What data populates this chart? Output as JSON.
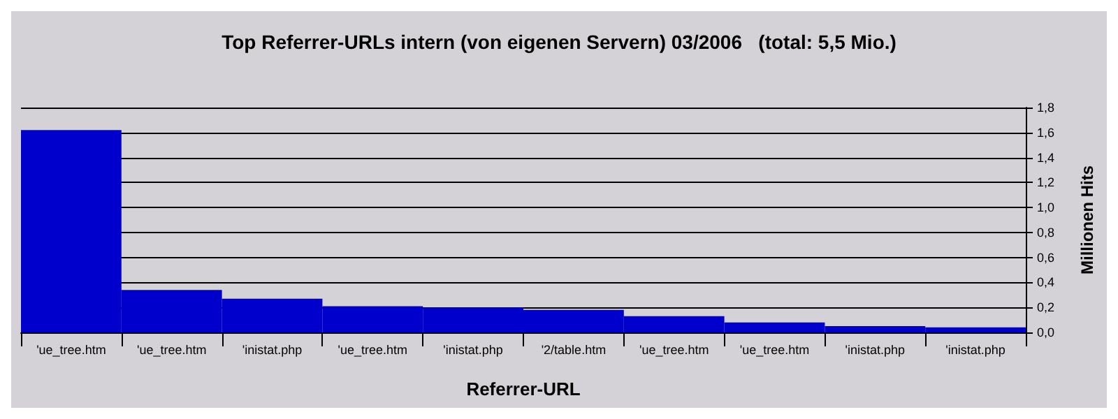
{
  "chart_data": {
    "type": "bar",
    "title": "Top Referrer-URLs intern (von eigenen Servern) 03/2006   (total: 5,5 Mio.)",
    "xlabel": "Referrer-URL",
    "ylabel": "Millionen Hits",
    "categories": [
      "'ue_tree.htm",
      "'ue_tree.htm",
      "'inistat.php",
      "'ue_tree.htm",
      "'inistat.php",
      "'2/table.htm",
      "'ue_tree.htm",
      "'ue_tree.htm",
      "'inistat.php",
      "'inistat.php"
    ],
    "values": [
      1.62,
      0.34,
      0.27,
      0.21,
      0.2,
      0.18,
      0.13,
      0.08,
      0.05,
      0.04
    ],
    "color": "#0000cc",
    "ylim": [
      0,
      1.8
    ],
    "yticks": [
      {
        "value": 0,
        "label": "0,0"
      },
      {
        "value": 0.2,
        "label": "0,2"
      },
      {
        "value": 0.4,
        "label": "0,4"
      },
      {
        "value": 0.6,
        "label": "0,6"
      },
      {
        "value": 0.8,
        "label": "0,8"
      },
      {
        "value": 1.0,
        "label": "1,0"
      },
      {
        "value": 1.2,
        "label": "1,2"
      },
      {
        "value": 1.4,
        "label": "1,4"
      },
      {
        "value": 1.6,
        "label": "1,6"
      },
      {
        "value": 1.8,
        "label": "1,8"
      }
    ],
    "grid": "y"
  }
}
